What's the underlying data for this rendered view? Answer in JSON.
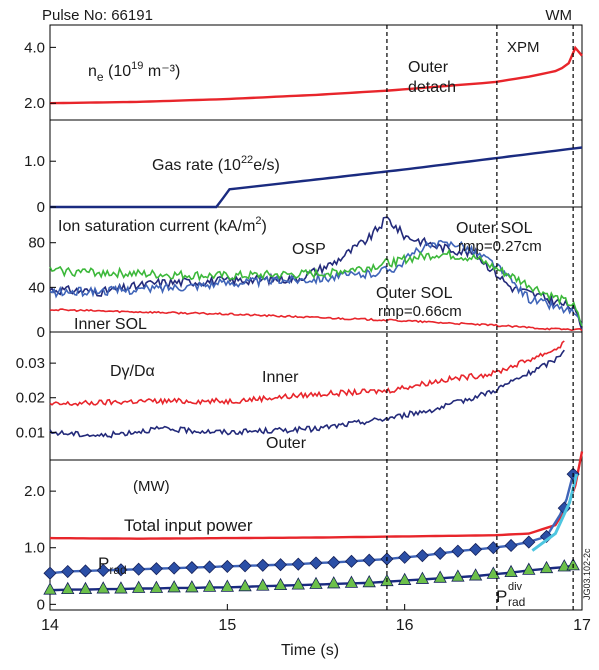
{
  "figure": {
    "header_left": "Pulse No: 66191",
    "header_right": "WM",
    "xlabel": "Time (s)",
    "side_label": "JG03.102-2c",
    "vlines": [
      {
        "x": 15.9,
        "label": "Outer detach",
        "label_lines": [
          "Outer",
          "detach"
        ]
      },
      {
        "x": 16.52,
        "label": "XPM"
      },
      {
        "x": 16.95,
        "label": "WM"
      }
    ]
  },
  "chart_data": [
    {
      "type": "line",
      "panel": "density",
      "annotation_base": "n",
      "annotation_sub": "e",
      "annotation_unit": "(10",
      "annotation_exp": "19",
      "annotation_tail": " m⁻³)",
      "xlim": [
        14,
        17
      ],
      "ylim": [
        1.4,
        4.8
      ],
      "yticks": [
        "2.0",
        "4.0"
      ],
      "ytick_values": [
        2.0,
        4.0
      ],
      "series": [
        {
          "color": "#e8252b",
          "x": [
            14,
            14.5,
            15,
            15.5,
            15.9,
            16.2,
            16.5,
            16.7,
            16.85,
            16.92,
            16.96,
            17.0
          ],
          "y": [
            2.0,
            2.05,
            2.15,
            2.3,
            2.45,
            2.6,
            2.75,
            2.95,
            3.15,
            3.35,
            4.0,
            3.7
          ]
        }
      ]
    },
    {
      "type": "line",
      "panel": "gas",
      "annotation": "Gas rate (10",
      "annotation_exp": "22",
      "annotation_tail": "e/s)",
      "xlim": [
        14,
        17
      ],
      "ylim": [
        0,
        1.9
      ],
      "yticks": [
        "0",
        "1.0"
      ],
      "ytick_values": [
        0,
        1.0
      ],
      "series": [
        {
          "color": "#1a2b80",
          "x": [
            14,
            14.95,
            15.0,
            16.0,
            17.0
          ],
          "y": [
            0,
            0,
            0.38,
            0.82,
            1.3
          ]
        }
      ]
    },
    {
      "type": "line",
      "panel": "jsat",
      "annotation": "Ion saturation current (kA/m",
      "annotation_exp": "2",
      "annotation_tail": ")",
      "xlim": [
        14,
        17
      ],
      "ylim": [
        0,
        112
      ],
      "yticks": [
        "0",
        "40",
        "80"
      ],
      "ytick_values": [
        0,
        40,
        80
      ],
      "series": [
        {
          "name": "OSP",
          "color": "#232a7a",
          "x": [
            14,
            14.3,
            14.6,
            15.0,
            15.4,
            15.6,
            15.8,
            15.9,
            16.0,
            16.2,
            16.4,
            16.6,
            16.8,
            16.95,
            17.0
          ],
          "y": [
            38,
            36,
            44,
            46,
            48,
            62,
            84,
            102,
            86,
            76,
            70,
            40,
            30,
            22,
            4
          ]
        },
        {
          "name": "Outer SOL rmp=0.27cm",
          "color": "#3f64b8",
          "x": [
            14,
            14.5,
            15.0,
            15.5,
            15.8,
            15.95,
            16.1,
            16.3,
            16.5,
            16.7,
            16.95,
            17.0
          ],
          "y": [
            35,
            38,
            44,
            48,
            52,
            58,
            76,
            80,
            62,
            30,
            18,
            4
          ]
        },
        {
          "name": "Outer SOL rmp=0.66cm",
          "color": "#3cb83a",
          "x": [
            14,
            14.5,
            15.0,
            15.5,
            15.8,
            16.0,
            16.2,
            16.4,
            16.6,
            16.8,
            16.95,
            17.0
          ],
          "y": [
            55,
            52,
            50,
            52,
            58,
            65,
            70,
            66,
            50,
            34,
            24,
            6
          ]
        },
        {
          "name": "Inner SOL",
          "color": "#e8252b",
          "x": [
            14,
            14.5,
            15.0,
            15.5,
            16.0,
            16.5,
            16.8,
            17.0
          ],
          "y": [
            20,
            18,
            16,
            13,
            10,
            6,
            3,
            2
          ]
        }
      ],
      "labels": [
        {
          "text": "OSP",
          "color": "#232a7a"
        },
        {
          "text": "Outer SOL",
          "text2": "rmp=0.27cm",
          "color": "#3f64b8"
        },
        {
          "text": "Outer SOL",
          "text2": "rmp=0.66cm",
          "color": "#3cb83a"
        },
        {
          "text": "Inner SOL",
          "color": "#e8252b"
        }
      ]
    },
    {
      "type": "line",
      "panel": "dgamma",
      "annotation": "Dγ/Dα",
      "xlim": [
        14,
        17
      ],
      "ylim": [
        0.002,
        0.039
      ],
      "yticks": [
        "0.01",
        "0.02",
        "0.03"
      ],
      "ytick_values": [
        0.01,
        0.02,
        0.03
      ],
      "series": [
        {
          "name": "Inner",
          "color": "#e8252b",
          "x": [
            14,
            14.5,
            15.0,
            15.5,
            15.9,
            16.2,
            16.5,
            16.7,
            16.85,
            16.9
          ],
          "y": [
            0.018,
            0.019,
            0.019,
            0.021,
            0.022,
            0.025,
            0.027,
            0.031,
            0.034,
            0.036
          ]
        },
        {
          "name": "Outer",
          "color": "#232a7a",
          "x": [
            14,
            14.3,
            14.6,
            15.0,
            15.5,
            15.9,
            16.2,
            16.5,
            16.7,
            16.85,
            16.9
          ],
          "y": [
            0.01,
            0.009,
            0.011,
            0.01,
            0.011,
            0.014,
            0.017,
            0.022,
            0.027,
            0.031,
            0.034
          ]
        }
      ],
      "labels": [
        {
          "text": "Inner",
          "color": "#e8252b"
        },
        {
          "text": "Outer",
          "color": "#3f5aa8"
        }
      ]
    },
    {
      "type": "line",
      "panel": "power",
      "annotation": "(MW)",
      "xlim": [
        14,
        17
      ],
      "ylim": [
        -0.1,
        2.55
      ],
      "yticks": [
        "0",
        "1.0",
        "2.0"
      ],
      "ytick_values": [
        0,
        1.0,
        2.0
      ],
      "series": [
        {
          "name": "Total input power",
          "color": "#e8252b",
          "x": [
            14,
            14.5,
            15.0,
            15.5,
            16.0,
            16.5,
            16.7,
            16.85,
            16.95,
            17.0
          ],
          "y": [
            1.17,
            1.16,
            1.17,
            1.18,
            1.2,
            1.22,
            1.25,
            1.4,
            1.9,
            2.7
          ]
        },
        {
          "name": "P_rad",
          "color": "#3f64b8",
          "fill": "#2b4fa6",
          "marker": "diamond",
          "x": [
            14,
            14.1,
            14.2,
            14.3,
            14.4,
            14.5,
            14.6,
            14.7,
            14.8,
            14.9,
            15.0,
            15.1,
            15.2,
            15.3,
            15.4,
            15.5,
            15.6,
            15.7,
            15.8,
            15.9,
            16.0,
            16.1,
            16.2,
            16.3,
            16.4,
            16.5,
            16.6,
            16.7,
            16.8,
            16.9,
            16.95
          ],
          "y": [
            0.55,
            0.58,
            0.59,
            0.6,
            0.61,
            0.62,
            0.63,
            0.64,
            0.65,
            0.66,
            0.67,
            0.68,
            0.69,
            0.7,
            0.71,
            0.73,
            0.74,
            0.76,
            0.78,
            0.8,
            0.83,
            0.86,
            0.9,
            0.94,
            0.97,
            1.0,
            1.04,
            1.1,
            1.2,
            1.7,
            2.3
          ]
        },
        {
          "name": "P_rad^div",
          "color": "#1a2b80",
          "fill": "#6cc04a",
          "marker": "triangle",
          "x": [
            14,
            14.1,
            14.2,
            14.3,
            14.4,
            14.5,
            14.6,
            14.7,
            14.8,
            14.9,
            15.0,
            15.1,
            15.2,
            15.3,
            15.4,
            15.5,
            15.6,
            15.7,
            15.8,
            15.9,
            16.0,
            16.1,
            16.2,
            16.3,
            16.4,
            16.5,
            16.6,
            16.7,
            16.8,
            16.9,
            16.95
          ],
          "y": [
            0.25,
            0.26,
            0.26,
            0.27,
            0.27,
            0.28,
            0.28,
            0.29,
            0.29,
            0.3,
            0.3,
            0.31,
            0.32,
            0.33,
            0.34,
            0.35,
            0.36,
            0.37,
            0.38,
            0.4,
            0.42,
            0.44,
            0.46,
            0.48,
            0.5,
            0.53,
            0.56,
            0.6,
            0.63,
            0.66,
            0.68
          ]
        }
      ],
      "labels": [
        {
          "text": "Total input power",
          "color": "#e8252b"
        },
        {
          "text": "P",
          "sub": "rad",
          "color": "#3f64b8"
        },
        {
          "text": "P",
          "sub": "rad",
          "sup": "div",
          "color": "#3cb83a"
        }
      ],
      "xticks": [
        "14",
        "15",
        "16",
        "17"
      ],
      "xtick_values": [
        14,
        15,
        16,
        17
      ]
    }
  ]
}
